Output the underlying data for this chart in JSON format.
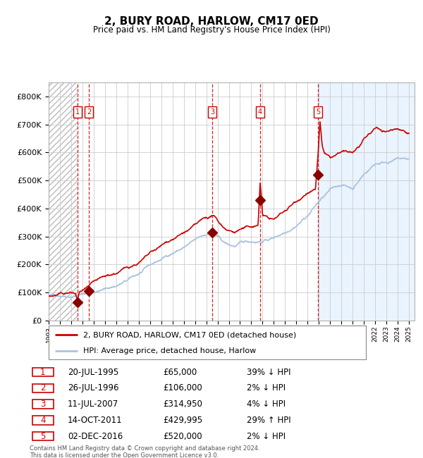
{
  "title": "2, BURY ROAD, HARLOW, CM17 0ED",
  "subtitle": "Price paid vs. HM Land Registry's House Price Index (HPI)",
  "xlim": [
    1993.0,
    2025.5
  ],
  "ylim": [
    0,
    850000
  ],
  "yticks": [
    0,
    100000,
    200000,
    300000,
    400000,
    500000,
    600000,
    700000,
    800000
  ],
  "ytick_labels": [
    "£0",
    "£100K",
    "£200K",
    "£300K",
    "£400K",
    "£500K",
    "£600K",
    "£700K",
    "£800K"
  ],
  "sales": [
    {
      "label": "1",
      "date_x": 1995.55,
      "price": 65000
    },
    {
      "label": "2",
      "date_x": 1996.57,
      "price": 106000
    },
    {
      "label": "3",
      "date_x": 2007.53,
      "price": 314950
    },
    {
      "label": "4",
      "date_x": 2011.78,
      "price": 429995
    },
    {
      "label": "5",
      "date_x": 2016.92,
      "price": 520000
    }
  ],
  "hpi_line_color": "#aac4e0",
  "price_line_color": "#cc0000",
  "sale_dot_color": "#880000",
  "dashed_line_color": "#cc0000",
  "right_bg_color": "#ddeeff",
  "legend_label_red": "2, BURY ROAD, HARLOW, CM17 0ED (detached house)",
  "legend_label_blue": "HPI: Average price, detached house, Harlow",
  "table_rows": [
    [
      "1",
      "20-JUL-1995",
      "£65,000",
      "39% ↓ HPI"
    ],
    [
      "2",
      "26-JUL-1996",
      "£106,000",
      "2% ↓ HPI"
    ],
    [
      "3",
      "11-JUL-2007",
      "£314,950",
      "4% ↓ HPI"
    ],
    [
      "4",
      "14-OCT-2011",
      "£429,995",
      "29% ↑ HPI"
    ],
    [
      "5",
      "02-DEC-2016",
      "£520,000",
      "2% ↓ HPI"
    ]
  ],
  "footer": "Contains HM Land Registry data © Crown copyright and database right 2024.\nThis data is licensed under the Open Government Licence v3.0.",
  "xticks": [
    1993,
    1994,
    1995,
    1996,
    1997,
    1998,
    1999,
    2000,
    2001,
    2002,
    2003,
    2004,
    2005,
    2006,
    2007,
    2008,
    2009,
    2010,
    2011,
    2012,
    2013,
    2014,
    2015,
    2016,
    2017,
    2018,
    2019,
    2020,
    2021,
    2022,
    2023,
    2024,
    2025
  ]
}
